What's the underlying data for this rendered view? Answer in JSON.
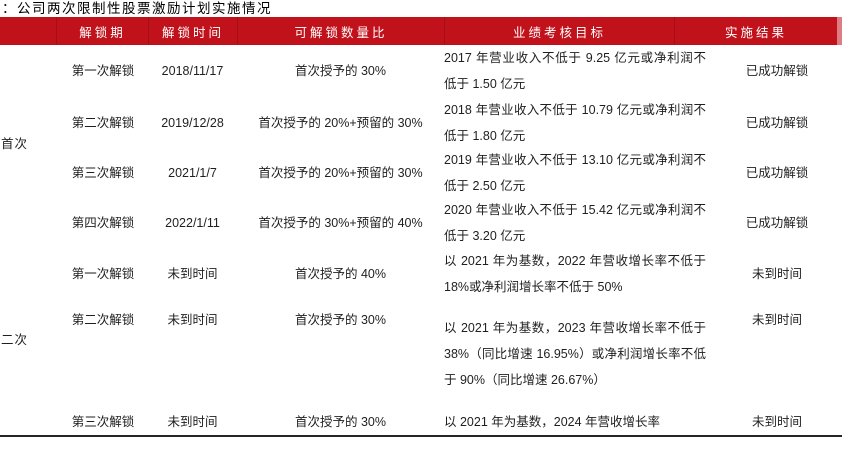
{
  "title": "：公司两次限制性股票激励计划实施情况",
  "colors": {
    "header_bg": "#c1121c",
    "header_separator": "#a40e17",
    "bottom_border": "#262626"
  },
  "table": {
    "headers": {
      "period": "解锁期",
      "time": "解锁时间",
      "ratio": "可解锁数量比",
      "target": "业绩考核目标",
      "result": "实施结果"
    },
    "groups": [
      {
        "label": "首次"
      },
      {
        "label": "二次"
      }
    ],
    "rows": [
      {
        "period": "第一次解锁",
        "time": "2018/11/17",
        "ratio": "首次授予的 30%",
        "target": "2017 年营业收入不低于 9.25 亿元或净利润不低于 1.50 亿元",
        "result": "已成功解锁"
      },
      {
        "period": "第二次解锁",
        "time": "2019/12/28",
        "ratio": "首次授予的 20%+预留的 30%",
        "target": "2018 年营业收入不低于 10.79 亿元或净利润不低于 1.80 亿元",
        "result": "已成功解锁"
      },
      {
        "period": "第三次解锁",
        "time": "2021/1/7",
        "ratio": "首次授予的 20%+预留的 30%",
        "target": "2019 年营业收入不低于 13.10 亿元或净利润不低于 2.50 亿元",
        "result": "已成功解锁"
      },
      {
        "period": "第四次解锁",
        "time": "2022/1/11",
        "ratio": "首次授予的 30%+预留的 40%",
        "target": "2020 年营业收入不低于 15.42 亿元或净利润不低于 3.20 亿元",
        "result": "已成功解锁"
      },
      {
        "period": "第一次解锁",
        "time": "未到时间",
        "ratio": "首次授予的 40%",
        "target": "以 2021 年为基数，2022 年营收增长率不低于 18%或净利润增长率不低于 50%",
        "result": "未到时间"
      },
      {
        "period": "第二次解锁",
        "time": "未到时间",
        "ratio": "首次授予的 30%",
        "target": "以 2021 年为基数，2023 年营收增长率不低于 38%（同比增速 16.95%）或净利润增长率不低于 90%（同比增速 26.67%）",
        "result": "未到时间"
      },
      {
        "period": "第三次解锁",
        "time": "未到时间",
        "ratio": "首次授予的 30%",
        "target": "以 2021 年为基数，2024 年营收增长率",
        "result": "未到时间"
      }
    ]
  }
}
